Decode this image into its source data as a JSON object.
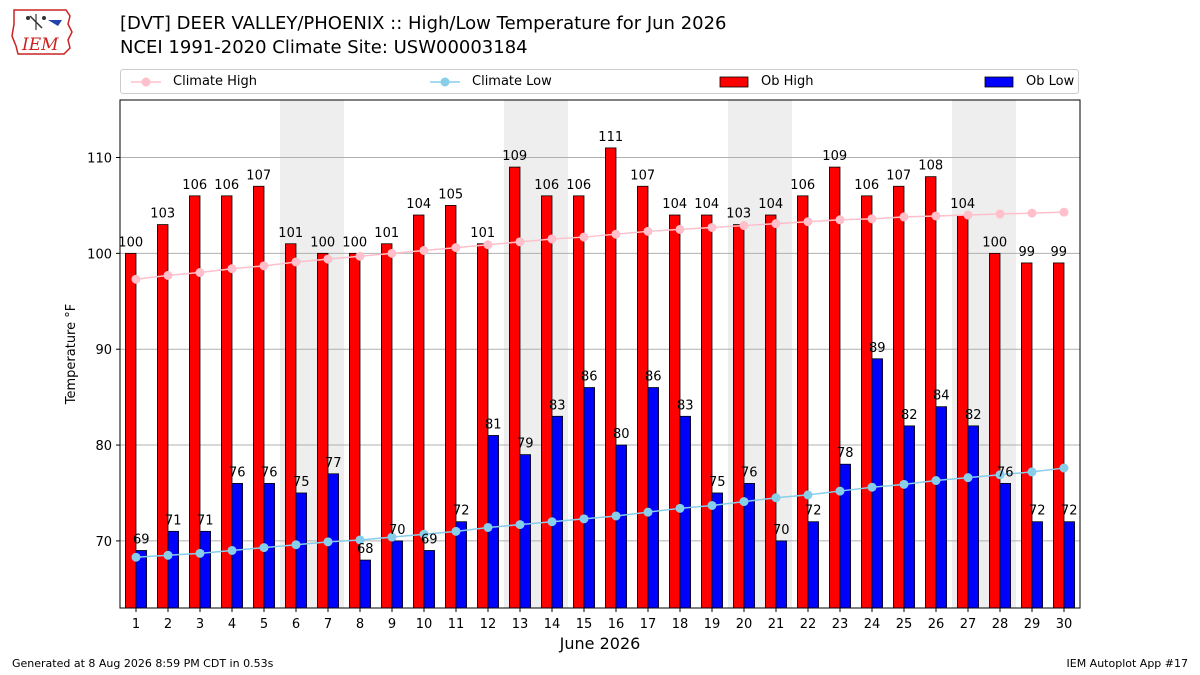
{
  "header": {
    "title": "[DVT] DEER VALLEY/PHOENIX :: High/Low Temperature for Jun 2026",
    "subtitle": "NCEI 1991-2020 Climate Site: USW00003184"
  },
  "logo": {
    "text": "IEM",
    "icon": "iem-logo-icon",
    "color": "#cc2222"
  },
  "footer": {
    "left": "Generated at 8 Aug 2026 8:59 PM CDT in 0.53s",
    "right": "IEM Autoplot App #17"
  },
  "legend": {
    "climate_high": "Climate High",
    "climate_low": "Climate Low",
    "ob_high": "Ob High",
    "ob_low": "Ob Low"
  },
  "colors": {
    "ob_high": "#ff0000",
    "ob_low": "#0000ff",
    "climate_high": "#ffc0cb",
    "climate_low": "#87ceeb",
    "weekend_shade": "#eeeeee"
  },
  "chart_data": {
    "type": "bar",
    "xlabel": "June 2026",
    "ylabel": "Temperature °F",
    "ylim": [
      63,
      116
    ],
    "yticks": [
      70,
      80,
      90,
      100,
      110
    ],
    "grid": true,
    "legend_position": "top",
    "categories": [
      1,
      2,
      3,
      4,
      5,
      6,
      7,
      8,
      9,
      10,
      11,
      12,
      13,
      14,
      15,
      16,
      17,
      18,
      19,
      20,
      21,
      22,
      23,
      24,
      25,
      26,
      27,
      28,
      29,
      30
    ],
    "shaded_days": [
      6,
      7,
      13,
      14,
      20,
      21,
      27,
      28
    ],
    "series": [
      {
        "name": "Ob High",
        "kind": "bar",
        "values": [
          100,
          103,
          106,
          106,
          107,
          101,
          100,
          100,
          101,
          104,
          105,
          101,
          109,
          106,
          106,
          111,
          107,
          104,
          104,
          103,
          104,
          106,
          109,
          106,
          107,
          108,
          104,
          100,
          99,
          99
        ]
      },
      {
        "name": "Ob Low",
        "kind": "bar",
        "values": [
          69,
          71,
          71,
          76,
          76,
          75,
          77,
          68,
          70,
          69,
          72,
          81,
          79,
          83,
          86,
          80,
          86,
          83,
          75,
          76,
          70,
          72,
          78,
          89,
          82,
          84,
          82,
          76,
          72,
          72
        ]
      },
      {
        "name": "Climate High",
        "kind": "line",
        "values": [
          97.3,
          97.7,
          98.0,
          98.4,
          98.7,
          99.1,
          99.4,
          99.7,
          100.0,
          100.3,
          100.6,
          100.9,
          101.2,
          101.5,
          101.7,
          102.0,
          102.3,
          102.5,
          102.7,
          102.9,
          103.1,
          103.3,
          103.5,
          103.6,
          103.8,
          103.9,
          104.0,
          104.1,
          104.2,
          104.3
        ]
      },
      {
        "name": "Climate Low",
        "kind": "line",
        "values": [
          68.3,
          68.5,
          68.7,
          69.0,
          69.3,
          69.6,
          69.9,
          70.1,
          70.4,
          70.7,
          71.0,
          71.4,
          71.7,
          72.0,
          72.3,
          72.6,
          73.0,
          73.4,
          73.7,
          74.1,
          74.5,
          74.8,
          75.2,
          75.6,
          75.9,
          76.3,
          76.6,
          76.9,
          77.2,
          77.6
        ]
      }
    ]
  }
}
